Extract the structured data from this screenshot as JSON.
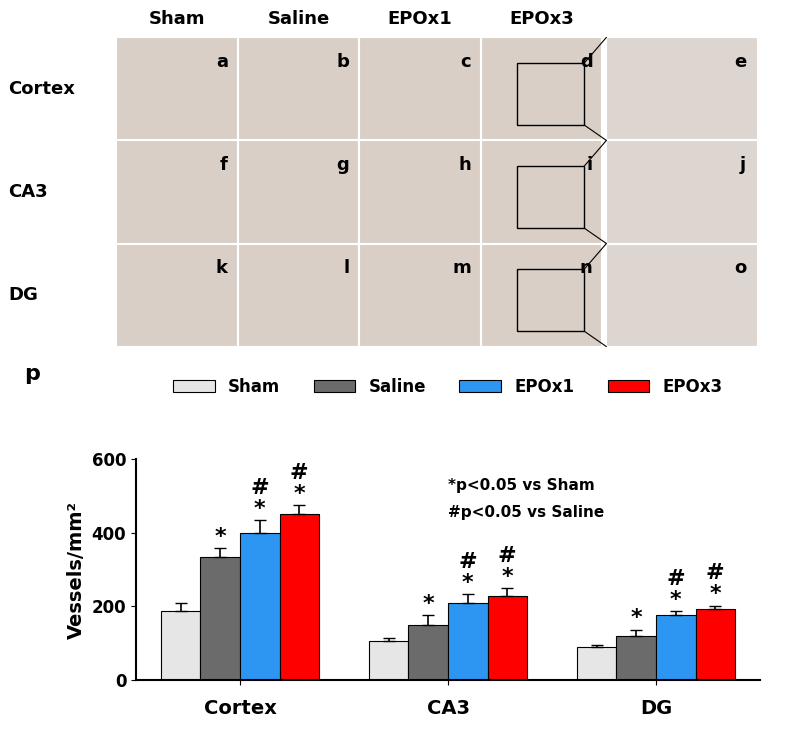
{
  "panels": {
    "columns": [
      "Sham",
      "Saline",
      "EPOx1",
      "EPOx3"
    ],
    "rows": [
      "Cortex",
      "CA3",
      "DG"
    ],
    "letters": [
      [
        "a",
        "b",
        "c",
        "d",
        "e"
      ],
      [
        "f",
        "g",
        "h",
        "i",
        "j"
      ],
      [
        "k",
        "l",
        "m",
        "n",
        "o"
      ]
    ]
  },
  "chart_data": {
    "type": "bar",
    "panel_label": "p",
    "y_label": "Vessels/mm²",
    "annotations": [
      "*p<0.05 vs Sham",
      "#p<0.05 vs Saline"
    ],
    "categories": [
      "Cortex",
      "CA3",
      "DG"
    ],
    "series": [
      {
        "name": "Sham",
        "color": "#e6e6e6",
        "values": [
          188,
          105,
          88
        ],
        "errors": [
          22,
          10,
          6
        ],
        "significance": []
      },
      {
        "name": "Saline",
        "color": "#6b6b6b",
        "values": [
          333,
          150,
          118
        ],
        "errors": [
          25,
          25,
          18
        ],
        "significance": [
          "*"
        ]
      },
      {
        "name": "EPOx1",
        "color": "#2c96f2",
        "values": [
          400,
          208,
          175
        ],
        "errors": [
          35,
          25,
          12
        ],
        "significance": [
          "*",
          "#"
        ]
      },
      {
        "name": "EPOx3",
        "color": "#ff0000",
        "values": [
          450,
          227,
          192
        ],
        "errors": [
          25,
          22,
          10
        ],
        "significance": [
          "*",
          "#"
        ]
      }
    ],
    "ylim": [
      0,
      600
    ],
    "yticks": [
      0,
      200,
      400,
      600
    ],
    "legend": "top",
    "grid": false
  }
}
